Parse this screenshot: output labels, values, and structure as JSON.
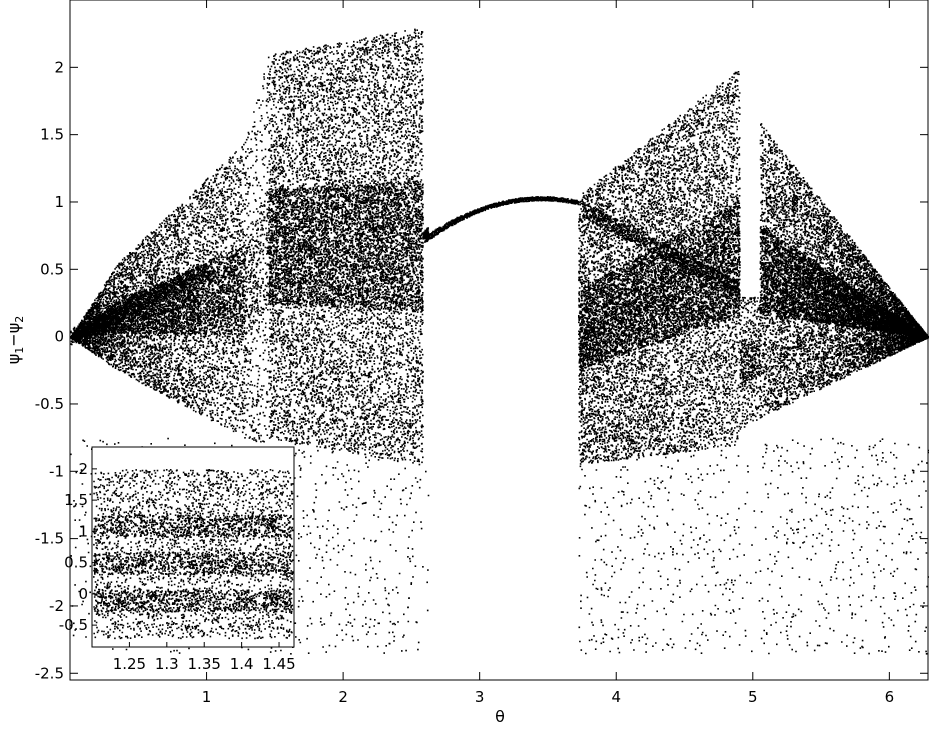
{
  "figure": {
    "background": "#ffffff",
    "ink": "#000000"
  },
  "chart_data": [
    {
      "type": "scatter",
      "role": "main",
      "xlabel": "θ",
      "ylabel_base": "ψ",
      "ylabel_sub1": "1",
      "ylabel_minus": "−",
      "ylabel_sub2": "2",
      "xlim": [
        0,
        6.283
      ],
      "ylim": [
        -2.55,
        2.5
      ],
      "xticks": [
        1,
        2,
        3,
        4,
        5,
        6
      ],
      "xtick_labels": [
        "1",
        "2",
        "3",
        "4",
        "5",
        "6"
      ],
      "yticks": [
        -2.5,
        -2,
        -1.5,
        -1,
        -0.5,
        0,
        0.5,
        1,
        1.5,
        2
      ],
      "ytick_labels": [
        "-2.5",
        "-2",
        "-1.5",
        "-1",
        "-0.5",
        "0",
        "0.5",
        "1",
        "1.5",
        "2"
      ],
      "series": [
        {
          "marker_color": "#000000",
          "regions": [
            {
              "x": [
                0.0,
                0.35
              ],
              "lo": [
                0.0,
                -0.25
              ],
              "hi": [
                0.0,
                0.55
              ],
              "density": 2
            },
            {
              "x": [
                0.35,
                1.28
              ],
              "lo": [
                -0.25,
                -0.75
              ],
              "hi": [
                0.55,
                1.45
              ],
              "density": 2
            },
            {
              "x": [
                1.28,
                1.45
              ],
              "lo": [
                -0.75,
                -0.8
              ],
              "hi": [
                1.45,
                2.1
              ],
              "density": 1
            },
            {
              "x": [
                1.45,
                2.58
              ],
              "lo": [
                -0.75,
                -0.95
              ],
              "hi": [
                2.1,
                2.3
              ],
              "density": 3
            },
            {
              "x": [
                2.58,
                2.62
              ],
              "lo": [
                0.7,
                0.72
              ],
              "hi": [
                0.78,
                0.82
              ],
              "density": 1
            },
            {
              "x": [
                3.72,
                4.9
              ],
              "lo": [
                -0.95,
                -0.8
              ],
              "hi": [
                1.05,
                2.0
              ],
              "density": 3
            },
            {
              "x": [
                4.9,
                5.05
              ],
              "lo": [
                -0.7,
                -0.6
              ],
              "hi": [
                0.3,
                0.3
              ],
              "density": 1
            },
            {
              "x": [
                5.05,
                6.283
              ],
              "lo": [
                -0.6,
                0.0
              ],
              "hi": [
                1.6,
                0.0
              ],
              "density": 3
            }
          ],
          "curves": [
            {
              "x": [
                2.6,
                3.72
              ],
              "y_form": "1.03 - 0.3*((x-3.45)/0.85)^2"
            },
            {
              "x": [
                0.0,
                1.0
              ],
              "y_form": "0.5*x"
            },
            {
              "x": [
                3.75,
                4.9
              ],
              "y_form": "0.95 - 0.6*((x-3.75)/1.15)"
            }
          ]
        }
      ]
    },
    {
      "type": "scatter",
      "role": "inset",
      "xlim": [
        1.2,
        1.47
      ],
      "ylim": [
        -0.85,
        2.35
      ],
      "xticks": [
        1.25,
        1.3,
        1.35,
        1.4,
        1.45
      ],
      "xtick_labels": [
        "1.25",
        "1.3",
        "1.35",
        "1.4",
        "1.45"
      ],
      "yticks": [
        -0.5,
        0,
        0.5,
        1,
        1.5,
        2
      ],
      "ytick_labels": [
        "-0.5",
        "0",
        "0.5",
        "1",
        "1.5",
        "2"
      ],
      "band_levels": [
        1.1,
        0.5,
        -0.1
      ]
    }
  ]
}
